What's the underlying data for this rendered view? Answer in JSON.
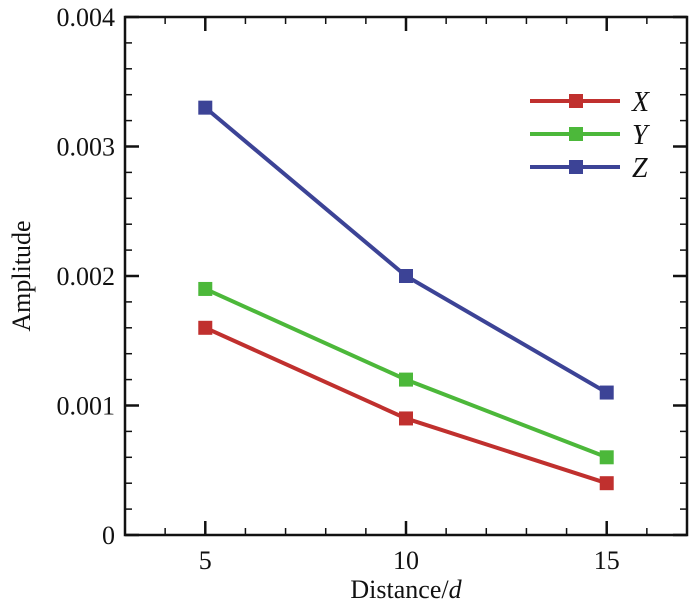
{
  "chart_data": {
    "type": "line",
    "title": "",
    "xlabel": "Distance/",
    "xlabel_italic": "d",
    "ylabel": "Amplitude",
    "x": [
      5,
      10,
      15
    ],
    "xlim": [
      3,
      17
    ],
    "ylim": [
      0,
      0.004
    ],
    "xticks": [
      5,
      10,
      15
    ],
    "xtick_labels": [
      "5",
      "10",
      "15"
    ],
    "yticks": [
      0,
      0.001,
      0.002,
      0.003,
      0.004
    ],
    "ytick_labels": [
      "0",
      "0.001",
      "0.002",
      "0.003",
      "0.004"
    ],
    "grid": false,
    "legend_position": "top-right",
    "series": [
      {
        "name": "X",
        "color": "#c0302e",
        "values": [
          0.0016,
          0.0009,
          0.0004
        ]
      },
      {
        "name": "Y",
        "color": "#4cb83a",
        "values": [
          0.0019,
          0.0012,
          0.0006
        ]
      },
      {
        "name": "Z",
        "color": "#3c4396",
        "values": [
          0.0033,
          0.002,
          0.0011
        ]
      }
    ]
  }
}
